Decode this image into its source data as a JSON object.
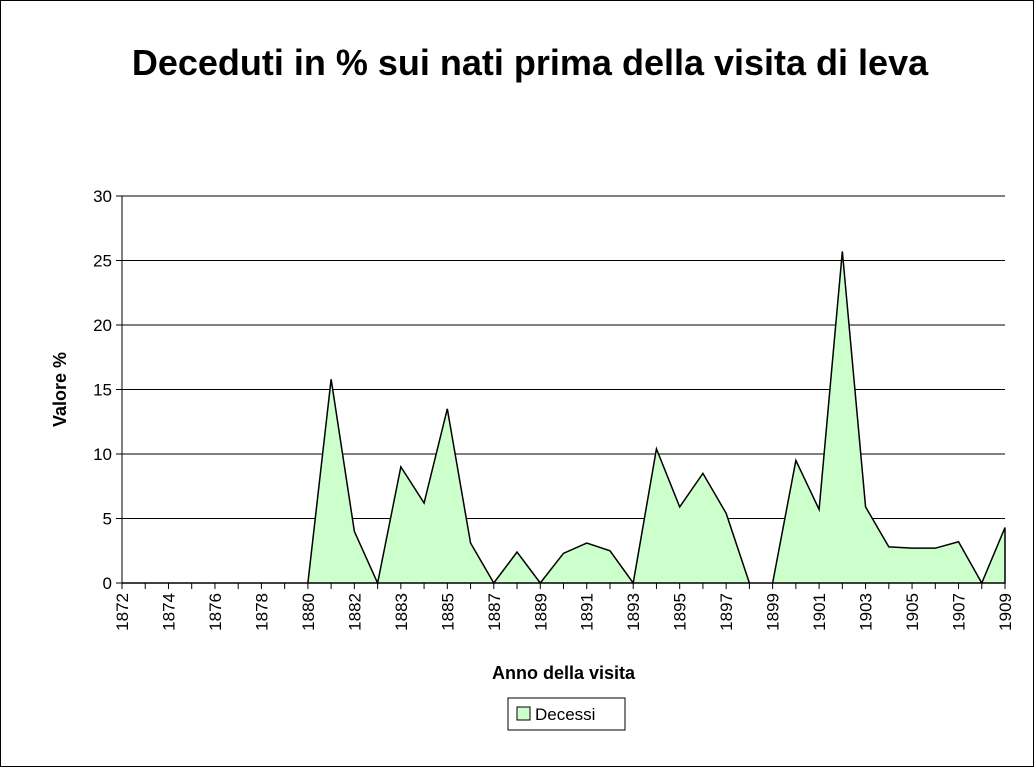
{
  "chart_data": {
    "type": "area",
    "title": "Deceduti in % sui nati prima della visita di leva",
    "xlabel": "Anno della visita",
    "ylabel": "Valore %",
    "categories": [
      "1872",
      null,
      "1874",
      null,
      "1876",
      null,
      "1878",
      null,
      "1880",
      null,
      "1882",
      null,
      "1883",
      null,
      "1885",
      null,
      "1887",
      null,
      "1889",
      null,
      "1891",
      null,
      "1893",
      null,
      "1895",
      null,
      "1897",
      null,
      "1899",
      null,
      "1901",
      null,
      "1903",
      null,
      "1905",
      null,
      "1907",
      null,
      "1909"
    ],
    "series": [
      {
        "name": "Decessi",
        "color": "#ccffcc",
        "values": [
          0,
          0,
          0,
          0,
          0,
          0,
          0,
          0,
          0,
          15.8,
          4.0,
          0,
          9.0,
          6.2,
          13.5,
          3.1,
          0,
          2.4,
          0,
          2.3,
          3.1,
          2.5,
          0,
          10.4,
          5.9,
          8.5,
          5.4,
          0,
          0,
          9.5,
          5.7,
          25.7,
          5.9,
          2.8,
          2.7,
          2.7,
          3.2,
          0,
          4.3
        ]
      }
    ],
    "ylim": [
      0,
      30
    ],
    "yticks": [
      0,
      5,
      10,
      15,
      20,
      25,
      30
    ],
    "grid": true,
    "legend": "bottom"
  }
}
